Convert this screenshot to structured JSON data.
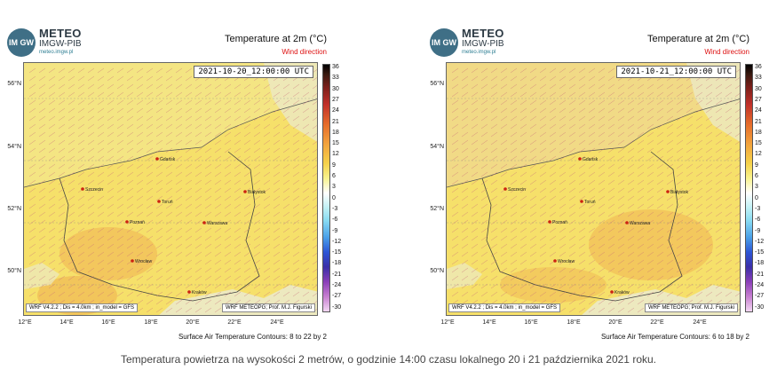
{
  "panels": [
    {
      "logo": {
        "mark": "IM GW",
        "brand": "METEO",
        "org": "IMGW-PIB",
        "url": "meteo.imgw.pl"
      },
      "title": "Temperature at 2m (°C)",
      "subtitle": "Wind direction",
      "date": "2021-10-20_12:00:00 UTC",
      "footer_left": "WRF V4.2.2 ; Dis = 4.0km ; in_model = GFS",
      "footer_right": "WRF METEOPG; Prof. M.J. Figurski",
      "contours": "Surface Air Temperature Contours: 8 to 22 by 2"
    },
    {
      "logo": {
        "mark": "IM GW",
        "brand": "METEO",
        "org": "IMGW-PIB",
        "url": "meteo.imgw.pl"
      },
      "title": "Temperature at 2m (°C)",
      "subtitle": "Wind direction",
      "date": "2021-10-21_12:00:00 UTC",
      "footer_left": "WRF V4.2.2 ; Dis = 4.0km ; in_model = GFS",
      "footer_right": "WRF METEOPG; Prof. M.J. Figurski",
      "contours": "Surface Air Temperature Contours: 6 to 18 by 2"
    }
  ],
  "lat_labels": [
    "56°N",
    "54°N",
    "52°N",
    "50°N"
  ],
  "lon_labels": [
    "12°E",
    "14°E",
    "16°E",
    "18°E",
    "20°E",
    "22°E",
    "24°E"
  ],
  "cities": [
    "Gdańsk",
    "Szczecin",
    "Toruń",
    "Białystok",
    "Poznań",
    "Warszawa",
    "Wrocław",
    "Kraków"
  ],
  "colorbar_ticks": [
    "36",
    "33",
    "30",
    "27",
    "24",
    "21",
    "18",
    "15",
    "12",
    "9",
    "6",
    "3",
    "0",
    "-3",
    "-6",
    "-9",
    "-12",
    "-15",
    "-18",
    "-21",
    "-24",
    "-27",
    "-30"
  ],
  "caption": "Temperatura powietrza na wysokości 2 metrów, o godzinie 14:00 czasu lokalnego 20 i 21 października 2021 roku.",
  "colors": {
    "map_base": "#f6e06a",
    "warm": "#f2c25a",
    "cool": "#ece9c4",
    "city": "#cc2211",
    "arrows": "#c86a7a"
  }
}
